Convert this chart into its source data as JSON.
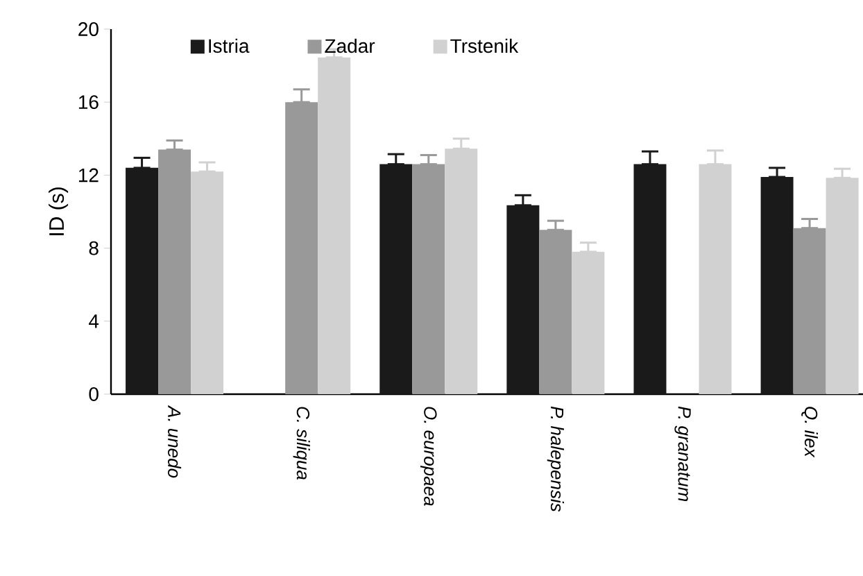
{
  "chart_data": {
    "type": "bar",
    "ylabel": "ID (s)",
    "categories": [
      "A. unedo",
      "C. siliqua",
      "O. europaea",
      "P. halepensis",
      "P. granatum",
      "Q. ilex"
    ],
    "series": [
      {
        "name": "Istria",
        "color": "#1a1a1a",
        "values": [
          12.4,
          null,
          12.6,
          10.35,
          12.6,
          11.9
        ],
        "errors": [
          [
            12.4,
            12.95
          ],
          null,
          [
            12.6,
            13.15
          ],
          [
            10.35,
            10.9
          ],
          [
            12.6,
            13.3
          ],
          [
            11.9,
            12.4
          ]
        ]
      },
      {
        "name": "Zadar",
        "color": "#999999",
        "values": [
          13.4,
          16.0,
          12.6,
          9.0,
          null,
          9.1
        ],
        "errors": [
          [
            13.4,
            13.9
          ],
          [
            16.0,
            16.7
          ],
          [
            12.6,
            13.1
          ],
          [
            9.0,
            9.5
          ],
          null,
          [
            9.1,
            9.6
          ]
        ]
      },
      {
        "name": "Trstenik",
        "color": "#d0d1d0",
        "values": [
          12.2,
          18.45,
          13.45,
          7.8,
          12.6,
          11.85
        ],
        "errors": [
          [
            12.2,
            12.7
          ],
          [
            18.45,
            18.9
          ],
          [
            13.45,
            14.0
          ],
          [
            7.8,
            8.3
          ],
          [
            12.6,
            13.35
          ],
          [
            11.85,
            12.35
          ]
        ]
      }
    ],
    "ylim": [
      0,
      20
    ],
    "yticks": [
      0,
      4,
      8,
      12,
      16,
      20
    ],
    "legend": "top left",
    "grid": false
  }
}
